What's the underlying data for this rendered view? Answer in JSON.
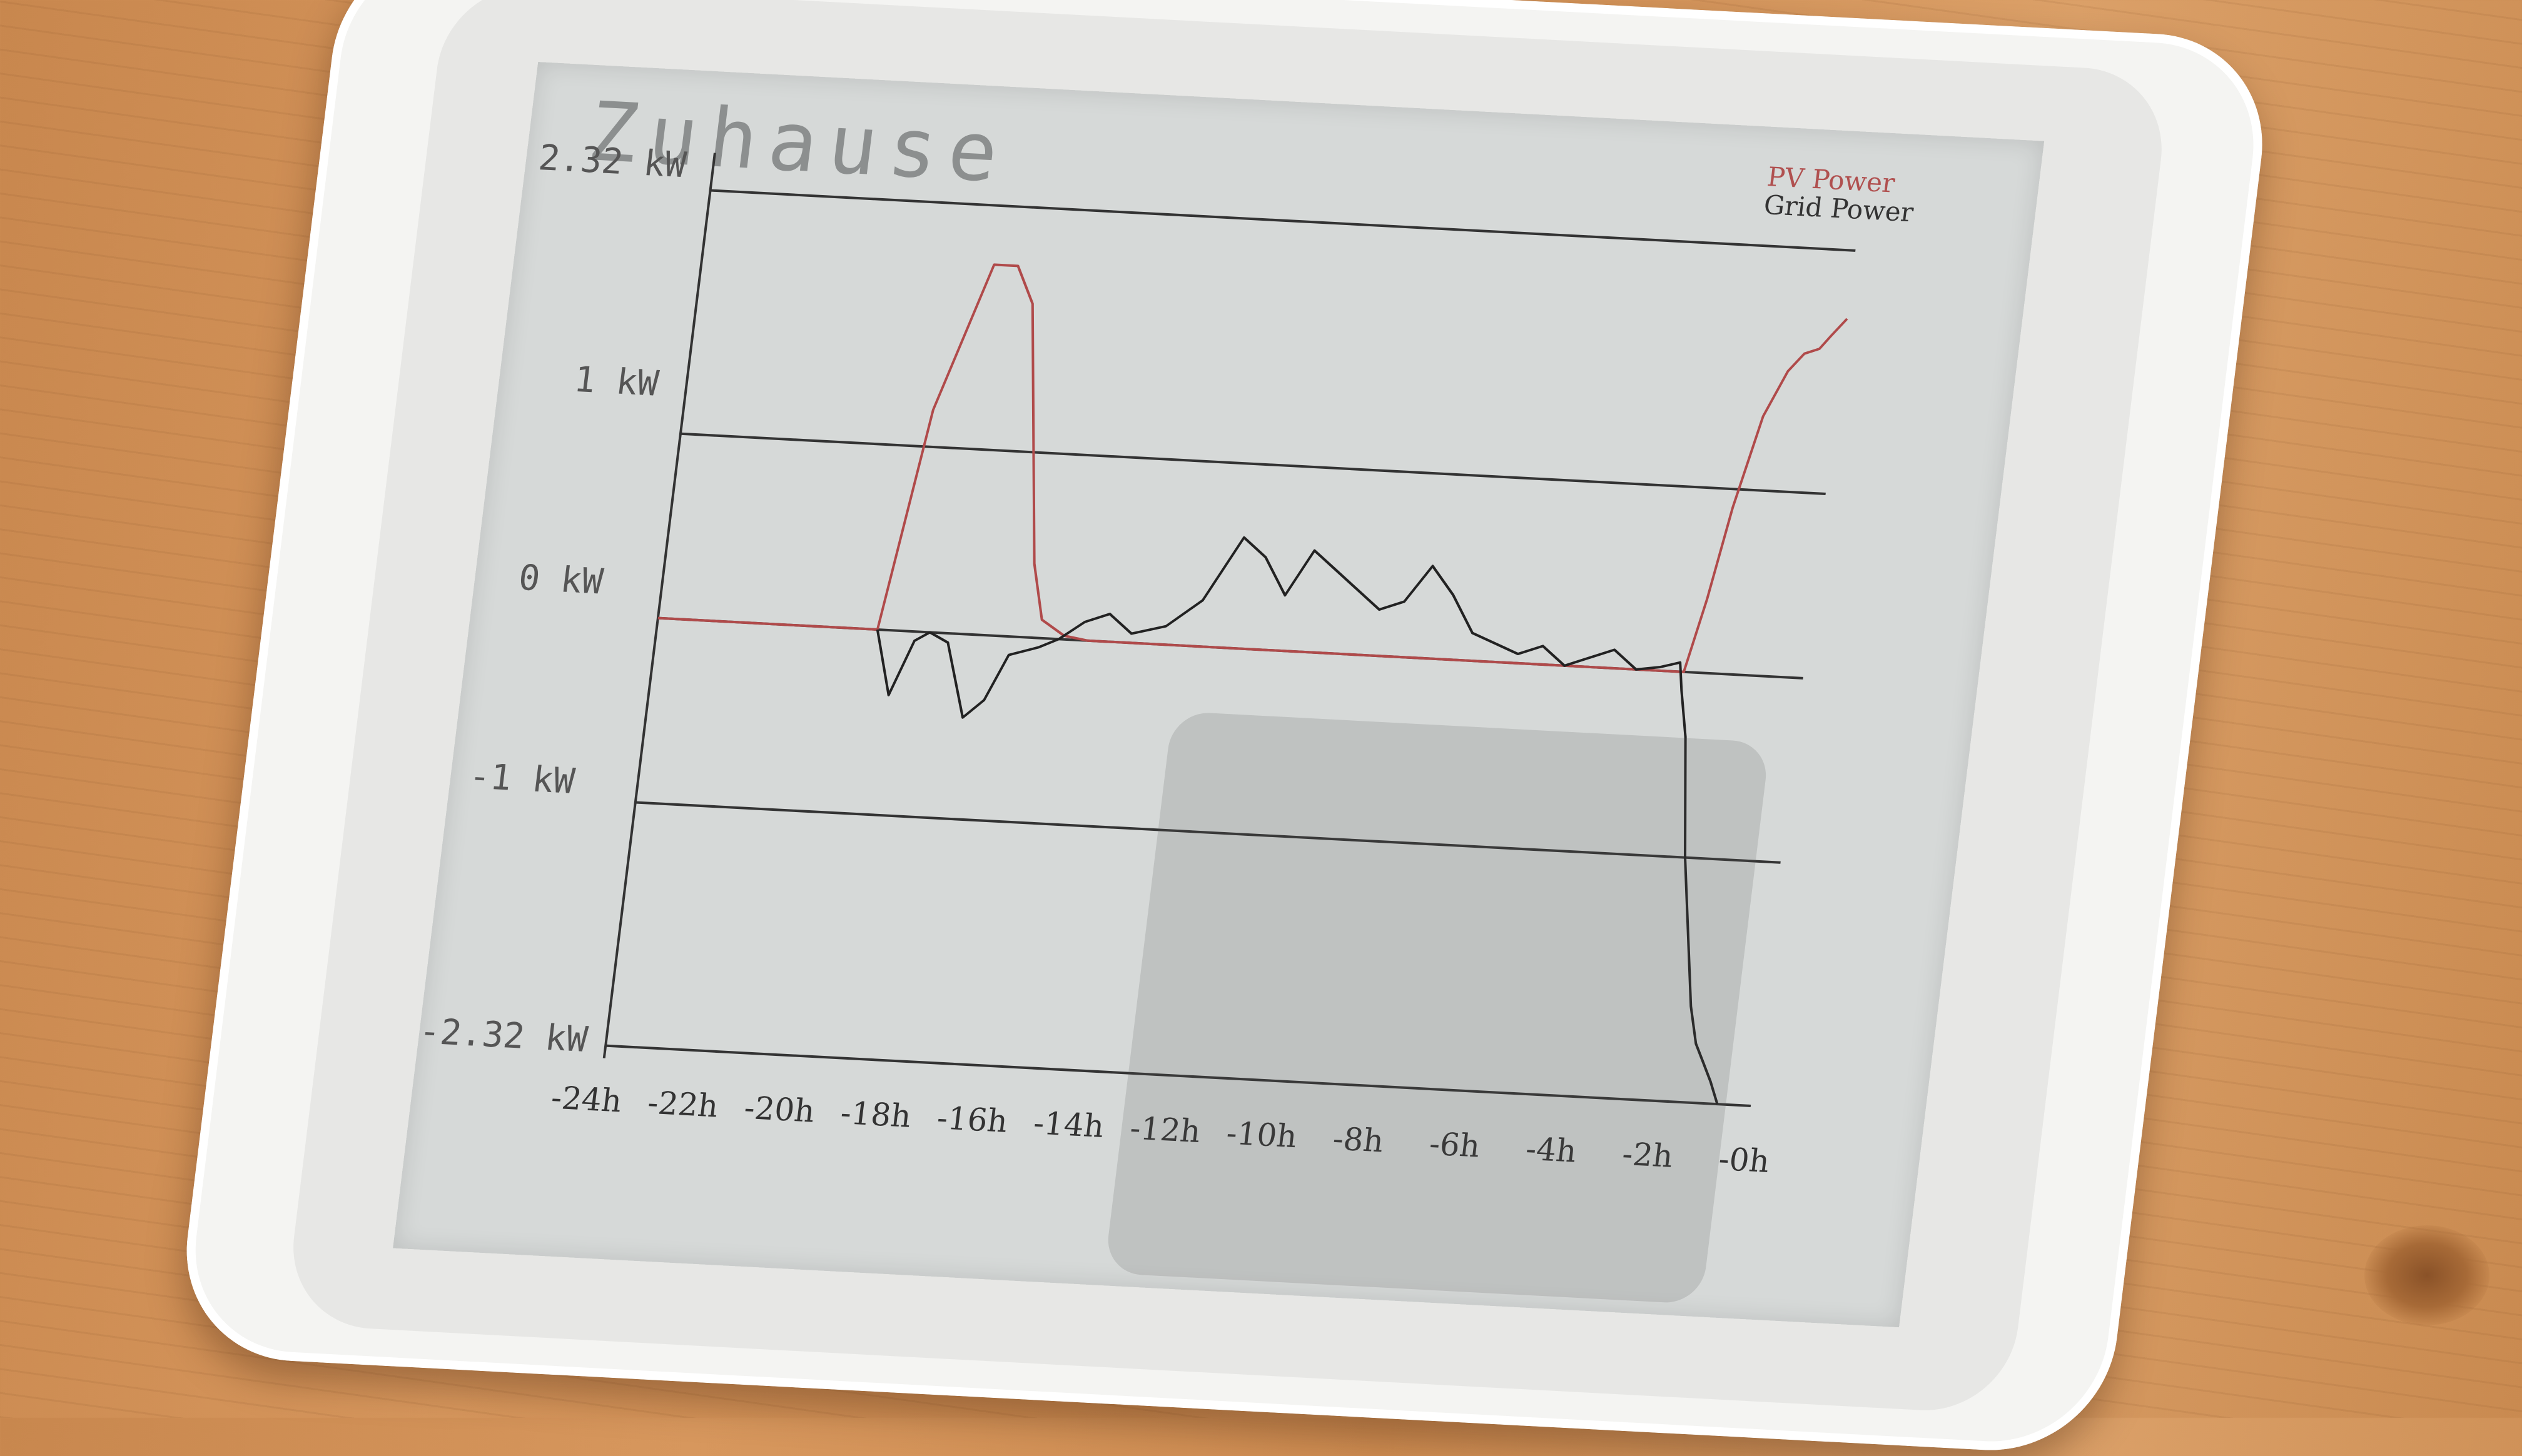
{
  "scene": {
    "surface": "wooden table",
    "device": "e-paper display"
  },
  "screen": {
    "title": "Zuhause"
  },
  "colors": {
    "pv": "#b04a4a",
    "grid": "#222222",
    "screen_bg": "#d6d9d8"
  },
  "chart_data": {
    "type": "line",
    "title": "Zuhause",
    "ylabels": [
      "2.32 kW",
      "1 kW",
      "0 kW",
      "-1 kW",
      "-2.32 kW"
    ],
    "xlabels": [
      "-24h",
      "-22h",
      "-20h",
      "-18h",
      "-16h",
      "-14h",
      "-12h",
      "-10h",
      "-8h",
      "-6h",
      "-4h",
      "-2h",
      "-0h"
    ],
    "ylim": [
      -2.32,
      2.32
    ],
    "xlim": [
      -24,
      0
    ],
    "grid": true,
    "legend_position": "top-right",
    "series": [
      {
        "name": "PV Power",
        "color": "#b04a4a",
        "x": [
          -24,
          -19.4,
          -18.8,
          -17.9,
          -17.4,
          -17.0,
          -16.6,
          -16.3,
          -16.0,
          -15.5,
          -15.0,
          -14.0,
          -2.5,
          -2.2,
          -1.9,
          -1.5,
          -1.1,
          -0.8,
          -0.5,
          -0.3,
          0
        ],
        "y": [
          0,
          0,
          1.2,
          2.0,
          2.0,
          1.8,
          1.0,
          0.4,
          0.1,
          0.02,
          0,
          0,
          0,
          0.4,
          0.9,
          1.4,
          1.65,
          1.75,
          1.78,
          1.85,
          1.95
        ]
      },
      {
        "name": "Grid Power",
        "color": "#222222",
        "x": [
          -19.4,
          -19.0,
          -18.6,
          -18.3,
          -17.9,
          -17.4,
          -17.0,
          -16.6,
          -16.0,
          -15.6,
          -15.1,
          -14.6,
          -14.1,
          -13.4,
          -12.7,
          -12.0,
          -11.5,
          -11.0,
          -10.5,
          -10.0,
          -9.5,
          -9.0,
          -8.5,
          -8.0,
          -7.5,
          -7.0,
          -6.5,
          -6.0,
          -5.5,
          -5.0,
          -4.5,
          -4.0,
          -3.5,
          -3.0,
          -2.6,
          -2.5,
          -2.3,
          -2.0,
          -1.5,
          -1.3,
          -1.1,
          -0.9,
          -0.7
        ],
        "y": [
          0,
          -0.35,
          -0.05,
          0,
          -0.05,
          -0.45,
          -0.35,
          -0.1,
          -0.05,
          0,
          0.1,
          0.15,
          0.05,
          0.1,
          0.25,
          0.6,
          0.5,
          0.3,
          0.55,
          0.45,
          0.35,
          0.25,
          0.3,
          0.5,
          0.35,
          0.15,
          0.1,
          0.05,
          0.1,
          0.0,
          0.05,
          0.1,
          0.0,
          0.02,
          0.05,
          -0.1,
          -0.35,
          -1.0,
          -1.8,
          -2.0,
          -2.1,
          -2.2,
          -2.32
        ]
      }
    ]
  }
}
